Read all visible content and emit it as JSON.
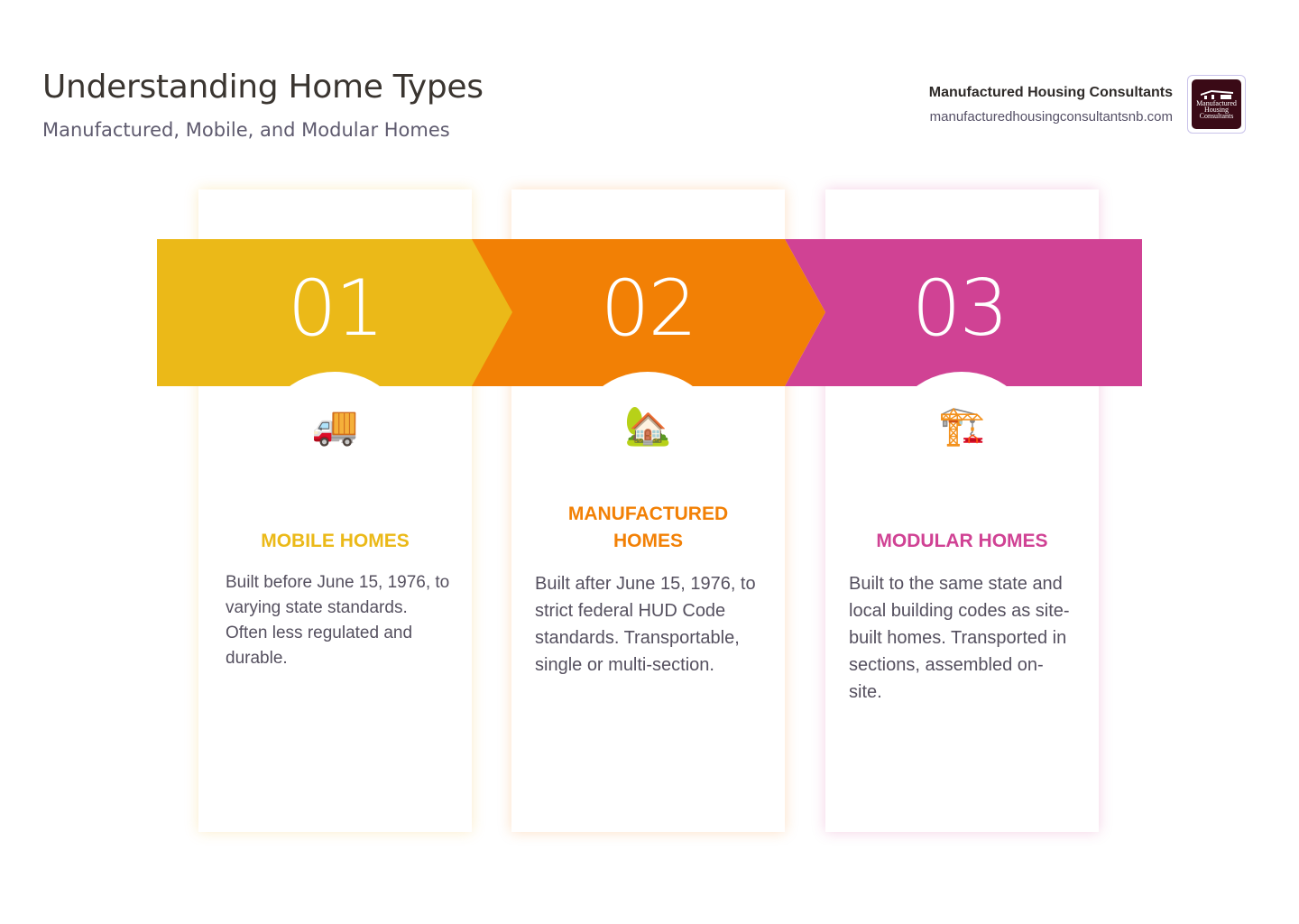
{
  "header": {
    "title": "Understanding Home Types",
    "subtitle": "Manufactured, Mobile, and Modular Homes"
  },
  "brand": {
    "name": "Manufactured Housing Consultants",
    "url": "manufacturedhousingconsultantsnb.com",
    "logo_text": "Manufactured Housing Consultants"
  },
  "steps": [
    {
      "number": "01",
      "icon": "delivery-truck",
      "emoji": "🚚",
      "heading": "MOBILE HOMES",
      "description": "Built before June 15, 1976, to varying state standards. Often less regulated and durable.",
      "color": "#EBB918"
    },
    {
      "number": "02",
      "icon": "house-with-garden",
      "emoji": "🏡",
      "heading": "MANUFACTURED HOMES",
      "description": "Built after June 15, 1976, to strict federal HUD Code standards. Transportable, single or multi-section.",
      "color": "#F28005"
    },
    {
      "number": "03",
      "icon": "building-construction",
      "emoji": "🏗️",
      "heading": "MODULAR HOMES",
      "description": "Built to the same state and local building codes as site-built homes. Transported in sections, assembled on-site.",
      "color": "#D04294"
    }
  ]
}
